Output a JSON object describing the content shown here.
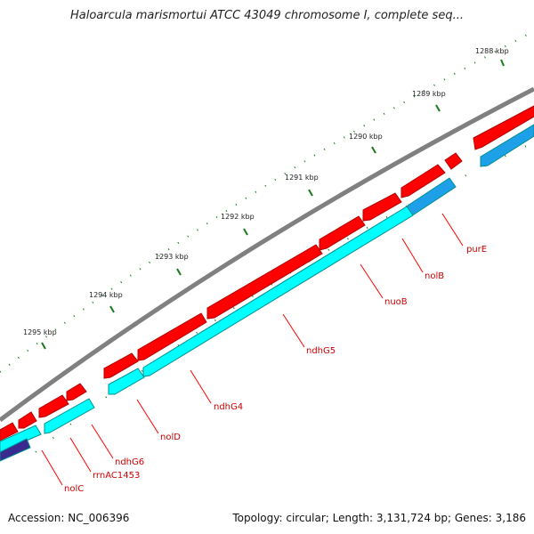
{
  "title": "Haloarcula marismortui ATCC 43049 chromosome I, complete seq...",
  "footer": {
    "accession": "Accession: NC_006396",
    "stats": "Topology: circular; Length: 3,131,724 bp; Genes: 3,186"
  },
  "scale_labels": [
    "1288 kbp",
    "1289 kbp",
    "1290 kbp",
    "1291 kbp",
    "1292 kbp",
    "1293 kbp",
    "1294 kbp",
    "1295 kbp"
  ],
  "gene_labels": [
    "purE",
    "nolB",
    "nuoB",
    "ndhG5",
    "ndhG4",
    "nolD",
    "ndhG6",
    "rrnAC1453",
    "nolC"
  ],
  "colors": {
    "forward_feature": "#ff0000",
    "reverse_feature": "#00ffff",
    "reverse_feature_alt": "#1ea0e8",
    "backbone": "#808080",
    "tick": "#1a7a1a",
    "label": "#cc0000"
  }
}
